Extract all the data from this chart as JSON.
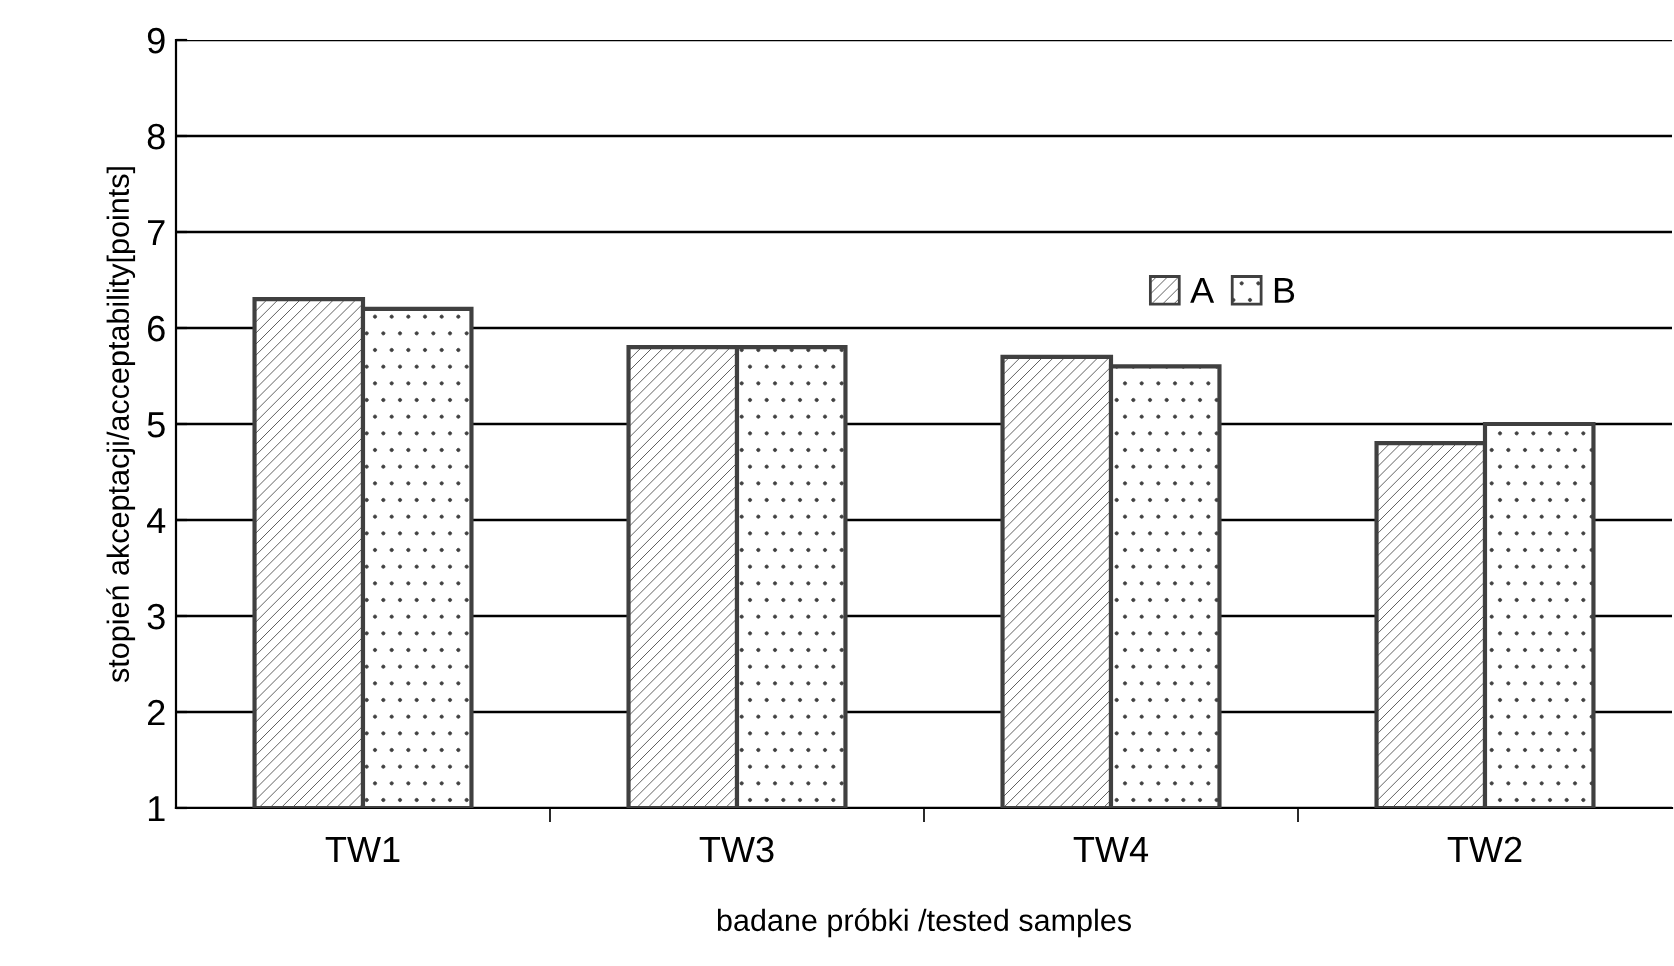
{
  "chart_data": {
    "type": "bar",
    "xlabel": "badane próbki /tested samples",
    "ylabel": "stopień akceptacji/acceptability[points]",
    "categories": [
      "TW1",
      "TW3",
      "TW4",
      "TW2"
    ],
    "series": [
      {
        "name": "A",
        "color": "#404040",
        "values": [
          6.3,
          5.8,
          5.7,
          4.8
        ]
      },
      {
        "name": "B",
        "color": "#404040",
        "values": [
          6.2,
          5.8,
          5.6,
          5.0
        ]
      }
    ],
    "ylim": [
      1,
      9
    ],
    "yticks": [
      1,
      2,
      3,
      4,
      5,
      6,
      7,
      8,
      9
    ],
    "grid": "y",
    "legend": "right"
  }
}
